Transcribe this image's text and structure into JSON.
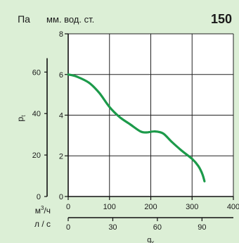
{
  "chart_data": {
    "type": "line",
    "label_left_unit": "Па",
    "label_right_unit": "мм. вод. ст.",
    "badge": "150",
    "ylabel": "p",
    "ylabel_sub": "t",
    "xlabel": "q",
    "xlabel_sub": "v",
    "flow_unit_m3h_base": "м",
    "flow_unit_m3h_sup": "3",
    "flow_unit_m3h_tail": "/ч",
    "flow_unit_ls": "л / с",
    "y_mm_ticks": [
      "0",
      "2",
      "4",
      "6",
      "8"
    ],
    "y_pa_ticks": [
      "0",
      "20",
      "40",
      "60"
    ],
    "x_m3h_ticks": [
      "0",
      "100",
      "200",
      "300",
      "400"
    ],
    "x_ls_ticks": [
      "0",
      "30",
      "60",
      "90"
    ],
    "xlim": [
      0,
      400
    ],
    "ylim": [
      0,
      8
    ],
    "grid": true,
    "line_color": "#1c9a4a",
    "series": [
      {
        "x": [
          0,
          20,
          50,
          75,
          100,
          125,
          150,
          175,
          190,
          210,
          230,
          250,
          275,
          300,
          315,
          325,
          330
        ],
        "y": [
          6.0,
          5.9,
          5.6,
          5.1,
          4.4,
          3.9,
          3.55,
          3.2,
          3.15,
          3.2,
          3.1,
          2.7,
          2.25,
          1.85,
          1.5,
          1.1,
          0.75
        ]
      }
    ]
  }
}
